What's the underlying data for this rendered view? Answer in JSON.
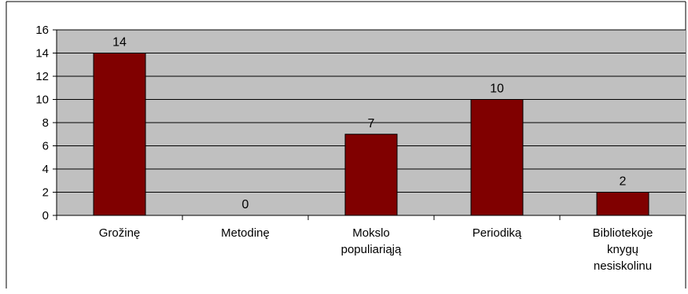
{
  "chart_data": {
    "type": "bar",
    "categories": [
      [
        "Grožinę"
      ],
      [
        "Metodinę"
      ],
      [
        "Mokslo",
        "populiariąją"
      ],
      [
        "Periodiką"
      ],
      [
        "Bibliotekoje",
        "knygų",
        "nesiskolinu"
      ]
    ],
    "values": [
      14,
      0,
      7,
      10,
      2
    ],
    "data_labels": [
      "14",
      "0",
      "7",
      "10",
      "2"
    ],
    "ylim": [
      0,
      16
    ],
    "yticks": [
      "0",
      "2",
      "4",
      "6",
      "8",
      "10",
      "12",
      "14",
      "16"
    ],
    "grid": true,
    "legend": "none",
    "colors": {
      "bar_fill": "#800000",
      "bar_stroke": "#000000",
      "plot_background": "#c0c0c0",
      "gridline": "#000000",
      "page_background": "#ffffff"
    }
  }
}
